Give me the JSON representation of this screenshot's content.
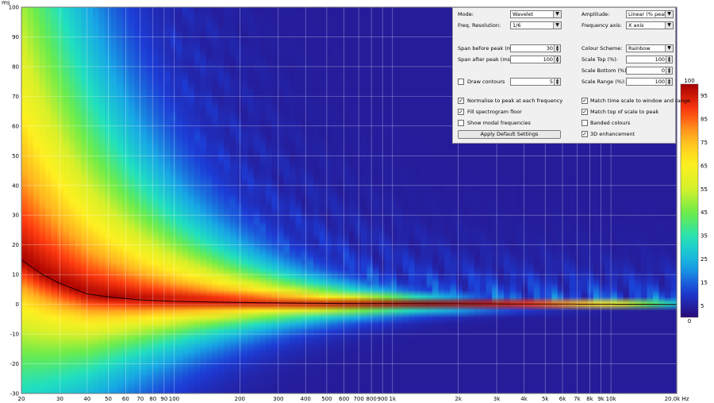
{
  "chart_data": {
    "type": "heatmap",
    "title": "",
    "xlabel": "",
    "ylabel": "",
    "x_scale": "log",
    "xlim": [
      20,
      20000
    ],
    "ylim": [
      -30,
      100
    ],
    "y_unit": "ms",
    "x_unit": "Hz",
    "y_ticks": [
      100,
      90,
      80,
      70,
      60,
      50,
      40,
      30,
      20,
      10,
      0,
      -10,
      -20,
      -30
    ],
    "x_ticks": [
      {
        "v": 20,
        "label": "20"
      },
      {
        "v": 30,
        "label": "30"
      },
      {
        "v": 40,
        "label": "40"
      },
      {
        "v": 50,
        "label": "50"
      },
      {
        "v": 60,
        "label": "60"
      },
      {
        "v": 70,
        "label": "70"
      },
      {
        "v": 80,
        "label": "80"
      },
      {
        "v": 90,
        "label": "90"
      },
      {
        "v": 100,
        "label": "100"
      },
      {
        "v": 200,
        "label": "200"
      },
      {
        "v": 300,
        "label": "300"
      },
      {
        "v": 400,
        "label": "400"
      },
      {
        "v": 500,
        "label": "500"
      },
      {
        "v": 600,
        "label": "600"
      },
      {
        "v": 700,
        "label": "700"
      },
      {
        "v": 800,
        "label": "800"
      },
      {
        "v": 900,
        "label": "900"
      },
      {
        "v": 1000,
        "label": "1k"
      },
      {
        "v": 2000,
        "label": "2k"
      },
      {
        "v": 3000,
        "label": "3k"
      },
      {
        "v": 4000,
        "label": "4k"
      },
      {
        "v": 5000,
        "label": "5k"
      },
      {
        "v": 6000,
        "label": "6k"
      },
      {
        "v": 7000,
        "label": "7k"
      },
      {
        "v": 8000,
        "label": "8k"
      },
      {
        "v": 9000,
        "label": "9k"
      },
      {
        "v": 10000,
        "label": "10k"
      },
      {
        "v": 20000,
        "label": "20.0k Hz"
      }
    ],
    "peak_curve": [
      [
        20,
        15
      ],
      [
        25,
        10
      ],
      [
        30,
        7
      ],
      [
        40,
        3.5
      ],
      [
        50,
        2.5
      ],
      [
        70,
        1.5
      ],
      [
        100,
        1
      ],
      [
        200,
        0.6
      ],
      [
        500,
        0.3
      ],
      [
        1000,
        0.2
      ],
      [
        20000,
        0
      ]
    ],
    "colorbar": {
      "min": 0,
      "max": 100,
      "ticks": [
        95,
        85,
        75,
        65,
        55,
        45,
        35,
        25,
        15,
        5
      ],
      "top_label": "100",
      "bottom_label": "0",
      "colors": [
        "#2a0a78",
        "#1c3cd6",
        "#17a8e6",
        "#20e0c0",
        "#6aec4c",
        "#d8f028",
        "#fff020",
        "#ffb020",
        "#ff3a10",
        "#a50000"
      ]
    }
  },
  "controls": {
    "mode_label": "Mode:",
    "mode_value": "Wavelet",
    "amplitude_label": "Amplitude:",
    "amplitude_value": "Linear (% peak)",
    "freq_res_label": "Freq. Resolution:",
    "freq_res_value": "1/6",
    "freq_axis_label": "Frequency axis:",
    "freq_axis_value": "X axis",
    "span_before_label": "Span before peak (ms):",
    "span_before_value": "30",
    "colour_scheme_label": "Colour Scheme:",
    "colour_scheme_value": "Rainbow",
    "span_after_label": "Span after peak (ms):",
    "span_after_value": "100",
    "scale_top_label": "Scale Top (%):",
    "scale_top_value": "100",
    "scale_bottom_label": "Scale Bottom (%):",
    "scale_bottom_value": "0",
    "draw_contours_label": "Draw contours",
    "draw_contours_checked": false,
    "contours_value": "5",
    "scale_range_label": "Scale Range (%):",
    "scale_range_value": "100",
    "normalise_label": "Normalise to peak at each frequency",
    "normalise_checked": true,
    "match_time_label": "Match time scale to window and range",
    "match_time_checked": true,
    "fill_floor_label": "Fill spectrogram floor",
    "fill_floor_checked": true,
    "match_top_label": "Match top of scale to peak",
    "match_top_checked": true,
    "show_modal_label": "Show modal frequencies",
    "show_modal_checked": false,
    "banded_label": "Banded colours",
    "banded_checked": false,
    "apply_defaults_label": "Apply Default Settings",
    "enhancement_label": "3D enhancement",
    "enhancement_checked": true
  }
}
